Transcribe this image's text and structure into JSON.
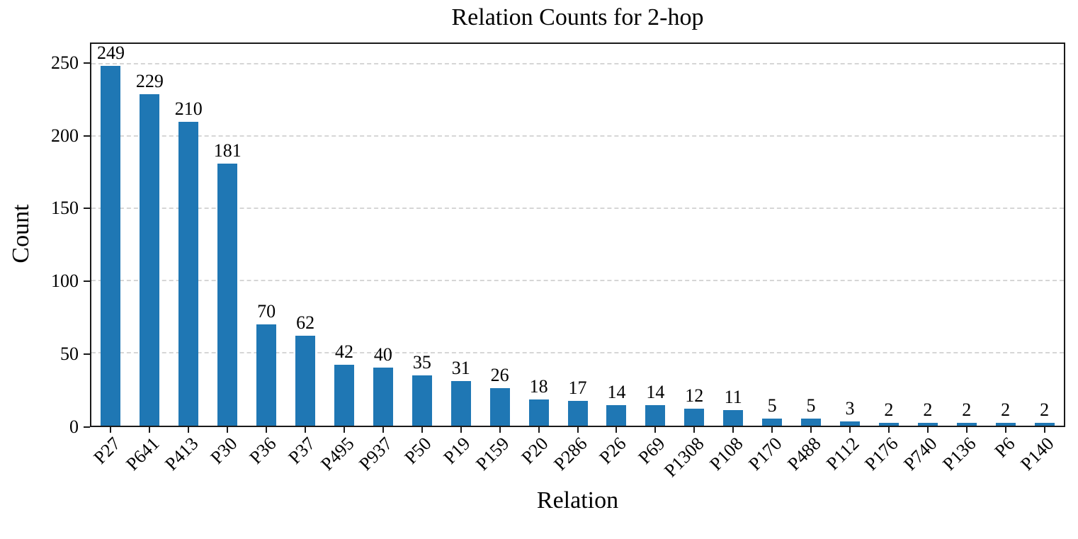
{
  "chart_data": {
    "type": "bar",
    "title": "Relation Counts for 2-hop",
    "xlabel": "Relation",
    "ylabel": "Count",
    "categories": [
      "P27",
      "P641",
      "P413",
      "P30",
      "P36",
      "P37",
      "P495",
      "P937",
      "P50",
      "P19",
      "P159",
      "P20",
      "P286",
      "P26",
      "P69",
      "P1308",
      "P108",
      "P170",
      "P488",
      "P112",
      "P176",
      "P740",
      "P136",
      "P6",
      "P140"
    ],
    "values": [
      249,
      229,
      210,
      181,
      70,
      62,
      42,
      40,
      35,
      31,
      26,
      18,
      17,
      14,
      14,
      12,
      11,
      5,
      5,
      3,
      2,
      2,
      2,
      2,
      2
    ],
    "bar_value_labels": [
      "249",
      "229",
      "210",
      "181",
      "70",
      "62",
      "42",
      "40",
      "35",
      "31",
      "26",
      "18",
      "17",
      "14",
      "14",
      "12",
      "11",
      "5",
      "5",
      "3",
      "2",
      "2",
      "2",
      "2",
      "2"
    ],
    "yticks": [
      0,
      50,
      100,
      150,
      200,
      250
    ],
    "ylim": [
      0,
      264
    ],
    "grid": "horizontal-dashed",
    "legend": "none",
    "bar_color": "#1f77b4",
    "grid_color": "#d6d6d6",
    "axis_color": "#1a1a1a"
  }
}
